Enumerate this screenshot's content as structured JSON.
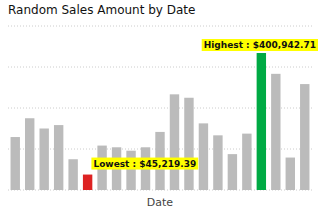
{
  "chart_data": {
    "type": "bar",
    "title": "Random Sales Amount by Date",
    "x_label": "Date",
    "categories": [
      null,
      null,
      null,
      null,
      null,
      null,
      null,
      null,
      null,
      null,
      null,
      null,
      null,
      null,
      null,
      null,
      null,
      null,
      null,
      null,
      null
    ],
    "values": [
      155000,
      210000,
      180000,
      190000,
      90000,
      45219.39,
      130000,
      125000,
      115000,
      125000,
      170000,
      280000,
      270000,
      195000,
      160000,
      105000,
      165000,
      400942.71,
      340000,
      95000,
      310000
    ],
    "colors": [
      "#bbbbbb",
      "#bbbbbb",
      "#bbbbbb",
      "#bbbbbb",
      "#bbbbbb",
      "#dd2222",
      "#bbbbbb",
      "#bbbbbb",
      "#bbbbbb",
      "#bbbbbb",
      "#bbbbbb",
      "#bbbbbb",
      "#bbbbbb",
      "#bbbbbb",
      "#bbbbbb",
      "#bbbbbb",
      "#bbbbbb",
      "#00aa44",
      "#bbbbbb",
      "#bbbbbb",
      "#bbbbbb"
    ],
    "ylim": [
      0,
      480000
    ],
    "yticks": [
      0,
      120000,
      240000,
      360000,
      480000
    ],
    "grid": true,
    "tick_labels": false,
    "annotations": [
      "Lowest : $45,219.39",
      "Highest : $400,942.71"
    ]
  }
}
